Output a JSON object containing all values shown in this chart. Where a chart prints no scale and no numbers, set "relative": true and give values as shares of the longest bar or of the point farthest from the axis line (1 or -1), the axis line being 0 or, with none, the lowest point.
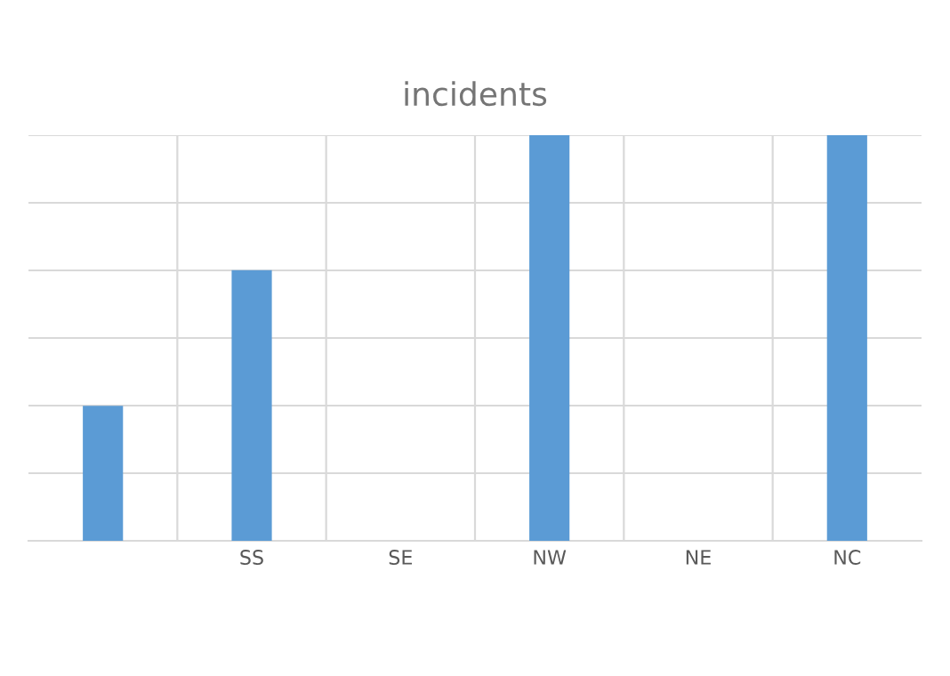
{
  "chart_data": {
    "type": "bar",
    "title": "incidents",
    "relative": true,
    "grid": true,
    "categories": [
      null,
      "SS",
      "SE",
      "NW",
      "NE",
      "NC"
    ],
    "values": [
      0.333,
      0.667,
      0,
      1,
      0,
      1
    ],
    "color": "#5b9bd5"
  }
}
